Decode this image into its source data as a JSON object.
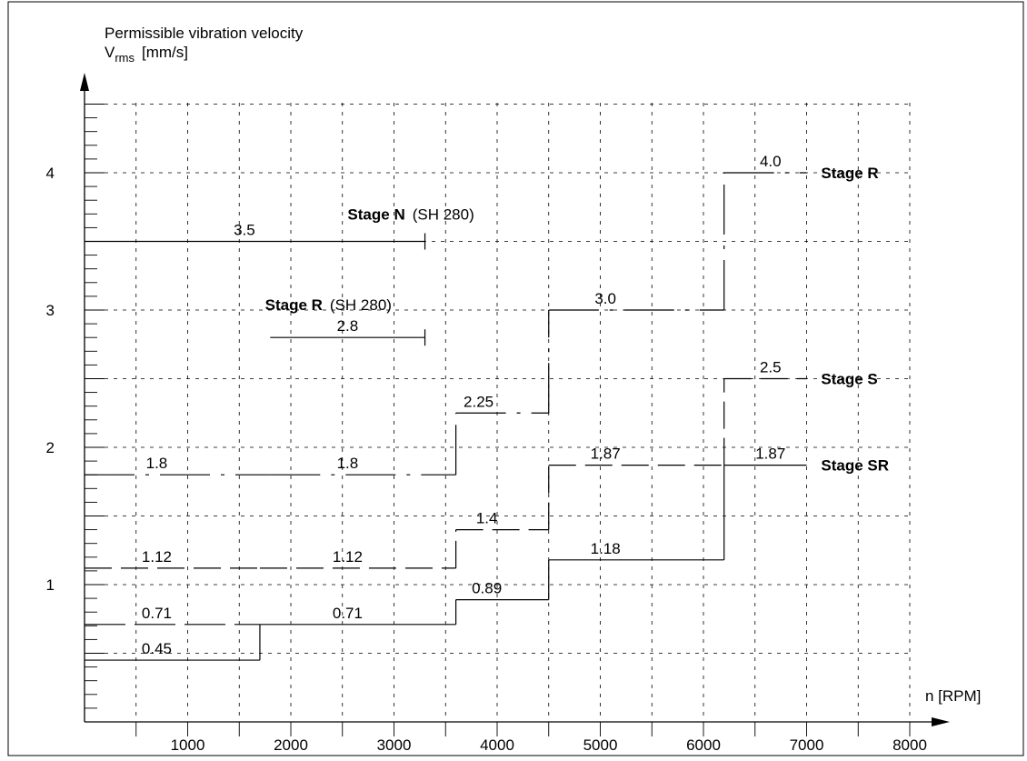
{
  "chart_data": {
    "type": "line",
    "title": "",
    "ylabel_line1": "Permissible vibration velocity",
    "ylabel_main": "V",
    "ylabel_sub": "rms",
    "ylabel_unit": "[mm/s]",
    "xlabel": "n  [RPM]",
    "xlim": [
      0,
      8000
    ],
    "ylim": [
      0,
      4.5
    ],
    "x_ticks": [
      1000,
      2000,
      3000,
      4000,
      5000,
      6000,
      7000,
      8000
    ],
    "y_ticks": [
      1,
      2,
      3,
      4
    ],
    "grid": true,
    "series": [
      {
        "name": "Stage N (SH 280)",
        "style": "solid",
        "segments": [
          [
            0,
            3300,
            3.5
          ]
        ]
      },
      {
        "name": "Stage R (SH 280)",
        "style": "solid",
        "segments": [
          [
            1800,
            3300,
            2.8
          ]
        ]
      },
      {
        "name": "Stage R",
        "style": "dashdot",
        "segments": [
          [
            0,
            1800,
            1.8
          ],
          [
            1800,
            3600,
            1.8
          ],
          [
            3600,
            4500,
            2.25
          ],
          [
            4500,
            6200,
            3.0
          ],
          [
            6200,
            7000,
            4.0
          ]
        ]
      },
      {
        "name": "Stage S",
        "style": "dashed",
        "segments": [
          [
            0,
            1700,
            1.12
          ],
          [
            1700,
            3600,
            1.12
          ],
          [
            3600,
            4500,
            1.4
          ],
          [
            4500,
            6200,
            1.87
          ],
          [
            6200,
            7000,
            2.5
          ]
        ]
      },
      {
        "name": "Stage SR",
        "style": "solid",
        "segments": [
          [
            0,
            1700,
            0.45
          ],
          [
            1700,
            3600,
            0.71
          ],
          [
            3600,
            4500,
            0.89
          ],
          [
            4500,
            6200,
            1.18
          ],
          [
            6200,
            7000,
            1.87
          ]
        ]
      },
      {
        "name": "",
        "style": "longdash",
        "segments": [
          [
            0,
            1700,
            0.71
          ]
        ]
      }
    ],
    "value_labels": [
      {
        "text": "3.5",
        "x": 1550,
        "y": 3.5
      },
      {
        "text": "2.8",
        "x": 2550,
        "y": 2.8
      },
      {
        "text": "1.8",
        "x": 700,
        "y": 1.8
      },
      {
        "text": "1.8",
        "x": 2550,
        "y": 1.8
      },
      {
        "text": "2.25",
        "x": 3820,
        "y": 2.25
      },
      {
        "text": "3.0",
        "x": 5050,
        "y": 3.0
      },
      {
        "text": "4.0",
        "x": 6650,
        "y": 4.0
      },
      {
        "text": "1.12",
        "x": 700,
        "y": 1.12
      },
      {
        "text": "1.12",
        "x": 2550,
        "y": 1.12
      },
      {
        "text": "1.4",
        "x": 3900,
        "y": 1.4
      },
      {
        "text": "1.87",
        "x": 5050,
        "y": 1.87
      },
      {
        "text": "2.5",
        "x": 6650,
        "y": 2.5
      },
      {
        "text": "0.71",
        "x": 700,
        "y": 0.71
      },
      {
        "text": "0.71",
        "x": 2550,
        "y": 0.71
      },
      {
        "text": "0.89",
        "x": 3900,
        "y": 0.89
      },
      {
        "text": "1.18",
        "x": 5050,
        "y": 1.18
      },
      {
        "text": "1.87",
        "x": 6650,
        "y": 1.87
      },
      {
        "text": "0.45",
        "x": 700,
        "y": 0.45
      }
    ],
    "annotations": [
      {
        "name": "stage-n",
        "bold": "Stage N",
        "plain": "(SH 280)",
        "x": 2550,
        "y": 3.7
      },
      {
        "name": "stage-r-sh280",
        "bold": "Stage R",
        "plain": "(SH 280)",
        "x": 1750,
        "y": 3.04
      },
      {
        "name": "stage-r",
        "bold": "Stage R",
        "plain": "",
        "x": 7140,
        "y": 4.0
      },
      {
        "name": "stage-s",
        "bold": "Stage S",
        "plain": "",
        "x": 7140,
        "y": 2.5
      },
      {
        "name": "stage-sr",
        "bold": "Stage SR",
        "plain": "",
        "x": 7140,
        "y": 1.87
      }
    ]
  }
}
